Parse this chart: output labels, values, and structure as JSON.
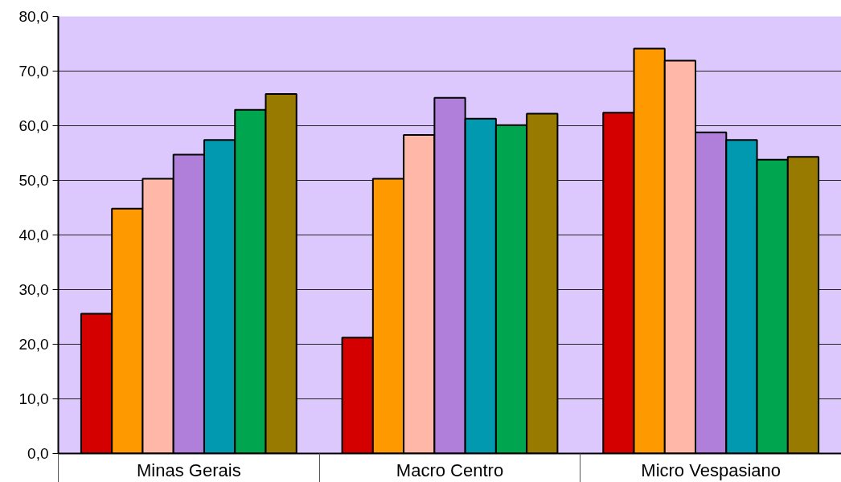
{
  "chart_data": {
    "type": "bar",
    "categories": [
      "Minas Gerais",
      "Macro Centro",
      "Micro Vespasiano"
    ],
    "series": [
      {
        "color": "#d40000",
        "values": [
          25.6,
          21.2,
          62.4
        ]
      },
      {
        "color": "#ff9900",
        "values": [
          44.8,
          50.3,
          74.1
        ]
      },
      {
        "color": "#ffb8a8",
        "values": [
          50.3,
          58.3,
          71.9
        ]
      },
      {
        "color": "#b07fd9",
        "values": [
          54.7,
          65.1,
          58.8
        ]
      },
      {
        "color": "#0099b0",
        "values": [
          57.4,
          61.3,
          57.4
        ]
      },
      {
        "color": "#00a550",
        "values": [
          62.9,
          60.1,
          53.8
        ]
      },
      {
        "color": "#997a00",
        "values": [
          65.8,
          62.2,
          54.3
        ]
      }
    ],
    "ylim": [
      0,
      80
    ],
    "yticks": [
      {
        "value": 0,
        "label": "0,0"
      },
      {
        "value": 10,
        "label": "10,0"
      },
      {
        "value": 20,
        "label": "20,0"
      },
      {
        "value": 30,
        "label": "30,0"
      },
      {
        "value": 40,
        "label": "40,0"
      },
      {
        "value": 50,
        "label": "50,0"
      },
      {
        "value": 60,
        "label": "60,0"
      },
      {
        "value": 70,
        "label": "70,0"
      },
      {
        "value": 80,
        "label": "80,0"
      }
    ],
    "grid": "y"
  }
}
